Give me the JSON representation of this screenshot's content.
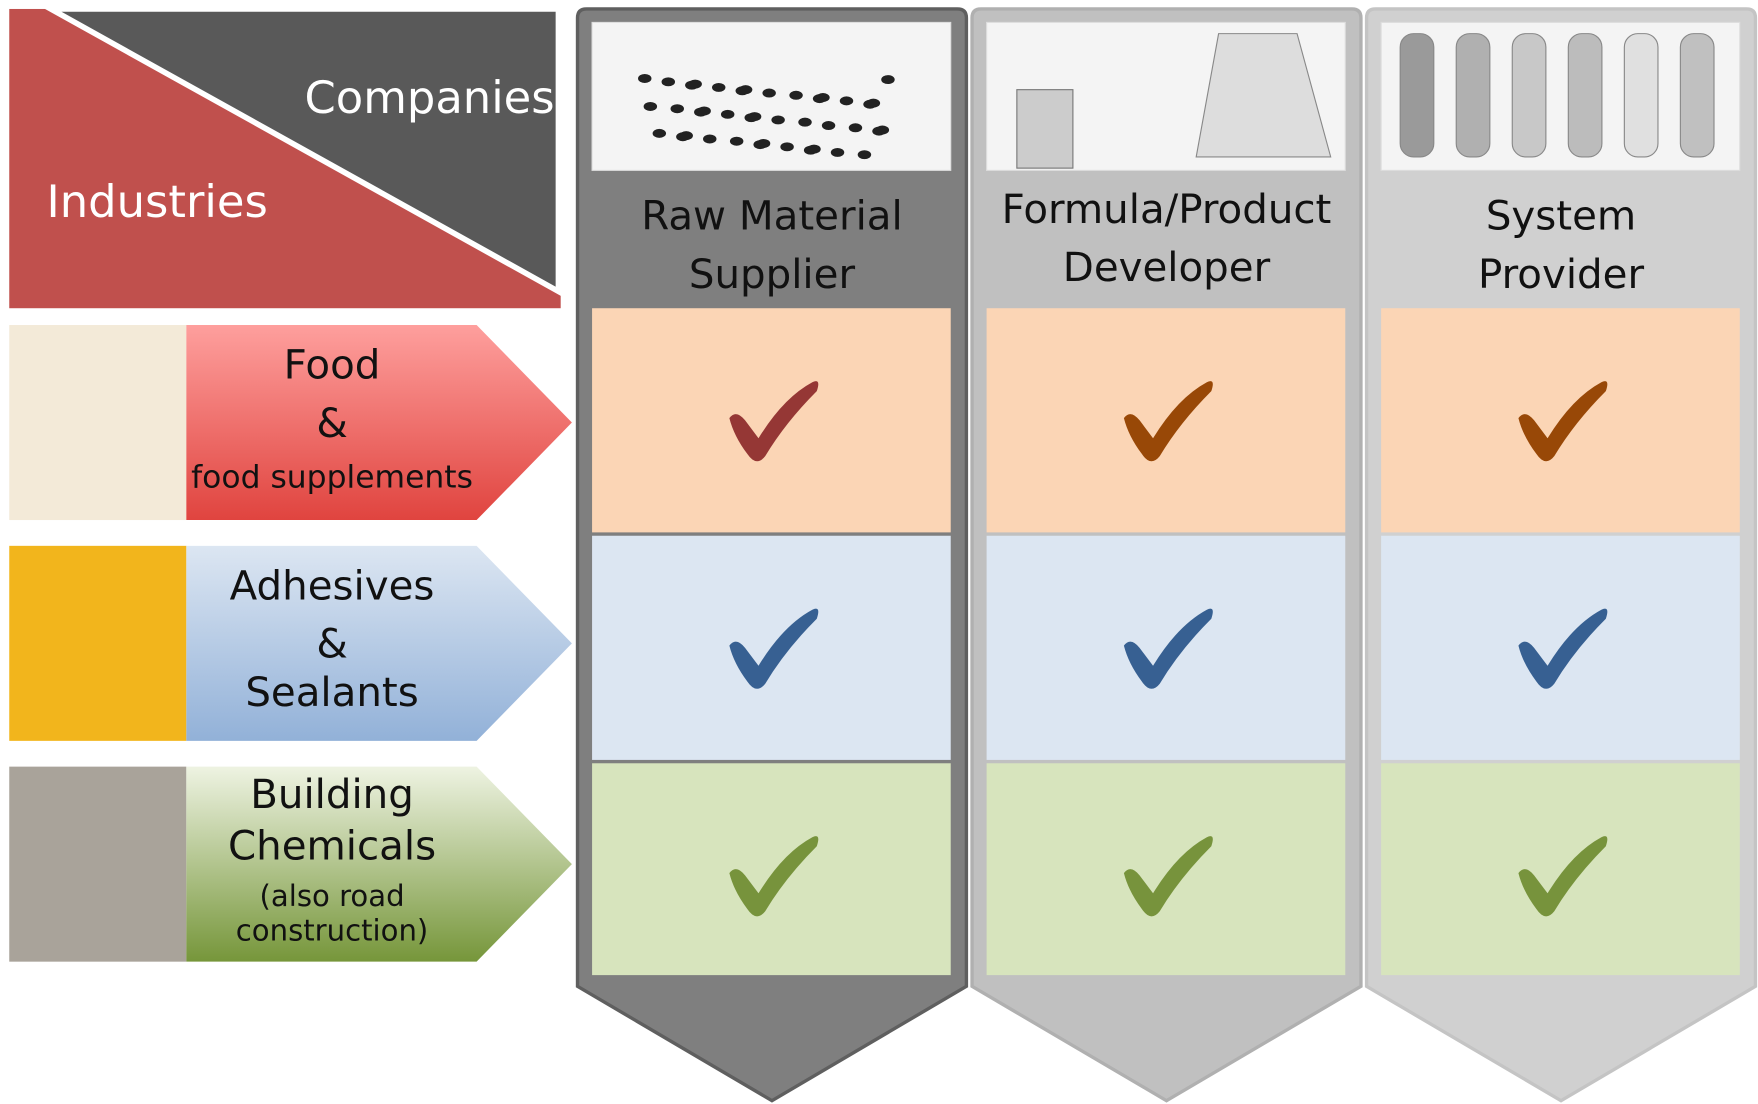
{
  "header": {
    "companies": "Companies",
    "industries": "Industries"
  },
  "columns": [
    {
      "lines": [
        "Raw Material",
        "Supplier"
      ]
    },
    {
      "lines": [
        "Formula/Product",
        "Developer"
      ]
    },
    {
      "lines": [
        "System",
        "Provider"
      ]
    }
  ],
  "rows": [
    {
      "lines": [
        "Food",
        "&",
        "food supplements"
      ]
    },
    {
      "lines": [
        "Adhesives",
        "&",
        "Sealants"
      ]
    },
    {
      "lines": [
        "Building",
        "Chemicals",
        "(also  road",
        "construction)"
      ]
    }
  ]
}
